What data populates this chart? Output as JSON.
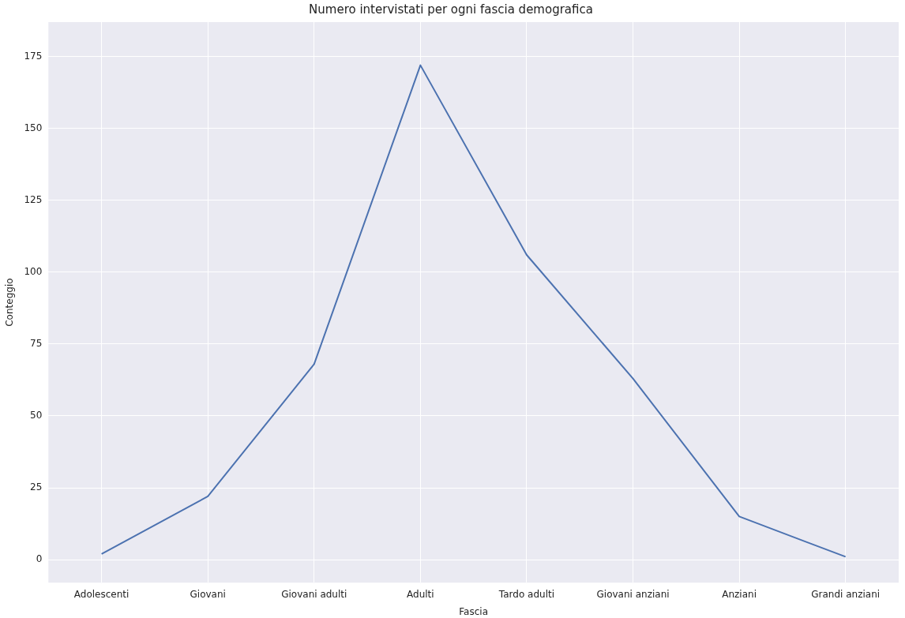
{
  "chart_data": {
    "type": "line",
    "title": "Numero intervistati per ogni fascia demografica",
    "xlabel": "Fascia",
    "ylabel": "Conteggio",
    "categories": [
      "Adolescenti",
      "Giovani",
      "Giovani adulti",
      "Adulti",
      "Tardo adulti",
      "Giovani anziani",
      "Anziani",
      "Grandi anziani"
    ],
    "series": [
      {
        "color": "#4c72b0",
        "values": [
          2,
          22,
          68,
          172,
          106,
          63,
          15,
          1
        ]
      }
    ],
    "ylim": [
      -8,
      187
    ],
    "yticks": [
      0,
      25,
      50,
      75,
      100,
      125,
      150,
      175
    ],
    "grid": true,
    "legend": false
  }
}
